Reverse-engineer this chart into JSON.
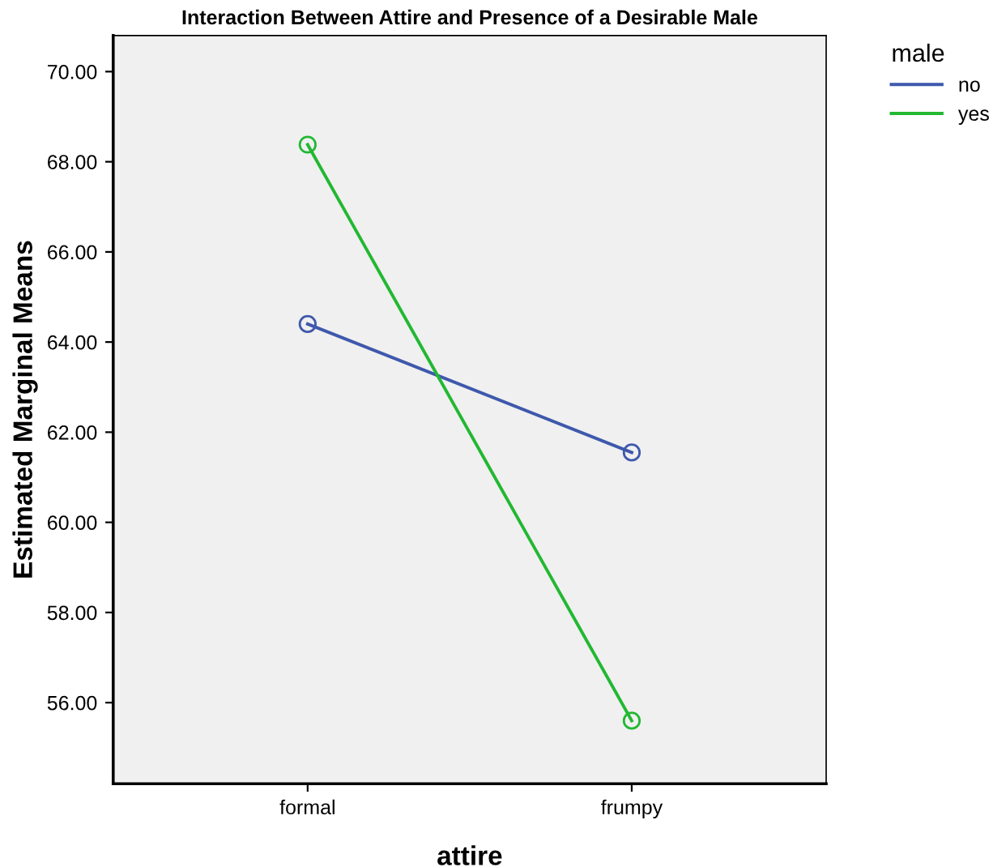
{
  "chart_data": {
    "type": "line",
    "title": "Interaction Between Attire and Presence of a Desirable Male",
    "xlabel": "attire",
    "ylabel": "Estimated Marginal Means",
    "legend_title": "male",
    "categories": [
      "formal",
      "frumpy"
    ],
    "series": [
      {
        "name": "no",
        "color": "#3e58ac",
        "values": [
          64.4,
          61.55
        ]
      },
      {
        "name": "yes",
        "color": "#22b832",
        "values": [
          68.38,
          55.6
        ]
      }
    ],
    "ylim": [
      54.2,
      70.8
    ],
    "yticks": [
      {
        "value": 56,
        "label": "56.00"
      },
      {
        "value": 58,
        "label": "58.00"
      },
      {
        "value": 60,
        "label": "60.00"
      },
      {
        "value": 62,
        "label": "62.00"
      },
      {
        "value": 64,
        "label": "64.00"
      },
      {
        "value": 66,
        "label": "66.00"
      },
      {
        "value": 68,
        "label": "68.00"
      },
      {
        "value": 70,
        "label": "70.00"
      }
    ],
    "marker": "circle",
    "line_style": "solid",
    "grid": false,
    "legend": "top right"
  }
}
